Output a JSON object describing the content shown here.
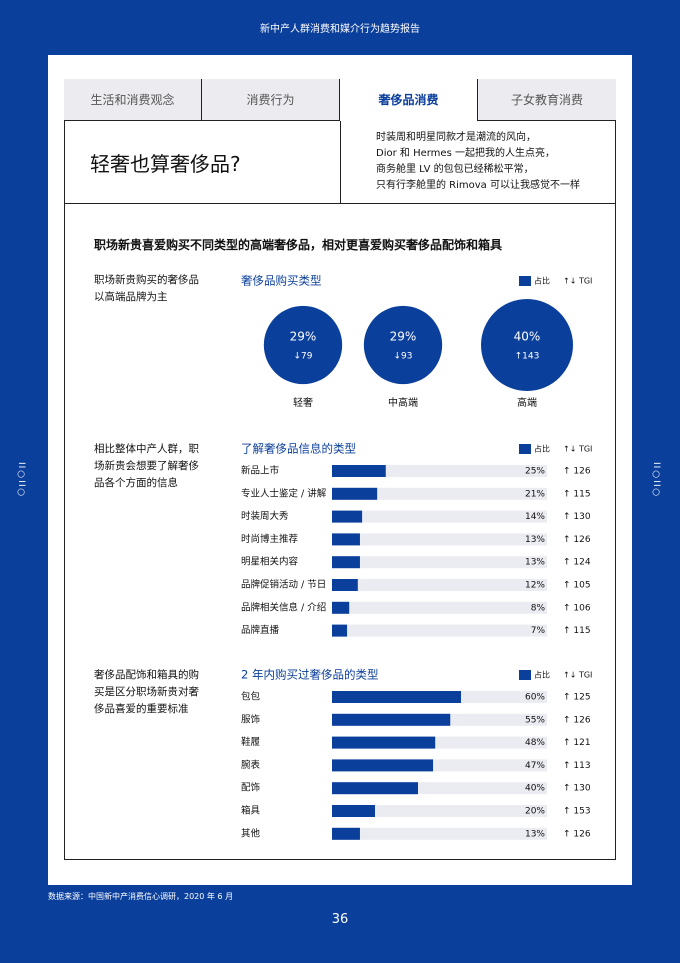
{
  "header": {
    "report_title": "新中产人群消费和媒介行为趋势报告",
    "side_mark": "II○II○",
    "source": "数据来源：中国新中产消费信心调研，2020 年 6 月",
    "page_number": "36"
  },
  "tabs": {
    "items": [
      "生活和消费观念",
      "消费行为",
      "奢侈品消费",
      "子女教育消费"
    ],
    "active": 2
  },
  "intro": {
    "title": "轻奢也算奢侈品?",
    "quote": [
      "时装周和明星同款才是潮流的风向，",
      "Dior 和 Hermes 一起把我的人生点亮，",
      "商务舱里 LV 的包包已经稀松平常，",
      "只有行李舱里的 Rimova 可以让我感觉不一样"
    ]
  },
  "headline": "职场新贵喜爱购买不同类型的高端奢侈品，相对更喜爱购买奢侈品配饰和箱具",
  "chart_data": [
    {
      "type": "bubble",
      "annotation": "职场新贵购买的奢侈品以高端品牌为主",
      "title": "奢侈品购买类型",
      "legend": [
        "占比",
        "↑↓ TGI"
      ],
      "color": "#0b3f9c",
      "categories": [
        "轻奢",
        "中高端",
        "高端"
      ],
      "values": [
        29,
        29,
        40
      ],
      "value_labels": [
        "29%",
        "29%",
        "40%"
      ],
      "tgi_labels": [
        "↓79",
        "↓93",
        "↑143"
      ]
    },
    {
      "type": "bar",
      "annotation": "相比整体中产人群，职场新贵会想要了解奢侈品各个方面的信息",
      "title": "了解奢侈品信息的类型",
      "legend": [
        "占比",
        "↑↓ TGI"
      ],
      "color": "#0b3f9c",
      "xlim": [
        0,
        100
      ],
      "categories": [
        "新品上市",
        "专业人士鉴定 / 讲解",
        "时装周大秀",
        "时尚博主推荐",
        "明星相关内容",
        "品牌促销活动 / 节日",
        "品牌相关信息 / 介绍",
        "品牌直播"
      ],
      "values": [
        25,
        21,
        14,
        13,
        13,
        12,
        8,
        7
      ],
      "value_labels": [
        "25%",
        "21%",
        "14%",
        "13%",
        "13%",
        "12%",
        "8%",
        "7%"
      ],
      "tgi_labels": [
        "↑ 126",
        "↑ 115",
        "↑ 130",
        "↑ 126",
        "↑ 124",
        "↑ 105",
        "↑ 106",
        "↑ 115"
      ]
    },
    {
      "type": "bar",
      "annotation": "奢侈品配饰和箱具的购买是区分职场新贵对奢侈品喜爱的重要标准",
      "title": "2 年内购买过奢侈品的类型",
      "legend": [
        "占比",
        "↑↓ TGI"
      ],
      "color": "#0b3f9c",
      "xlim": [
        0,
        100
      ],
      "categories": [
        "包包",
        "服饰",
        "鞋履",
        "腕表",
        "配饰",
        "箱具",
        "其他"
      ],
      "values": [
        60,
        55,
        48,
        47,
        40,
        20,
        13
      ],
      "value_labels": [
        "60%",
        "55%",
        "48%",
        "47%",
        "40%",
        "20%",
        "13%"
      ],
      "tgi_labels": [
        "↑ 125",
        "↑ 126",
        "↑ 121",
        "↑ 113",
        "↑ 130",
        "↑ 153",
        "↑ 126"
      ]
    }
  ]
}
